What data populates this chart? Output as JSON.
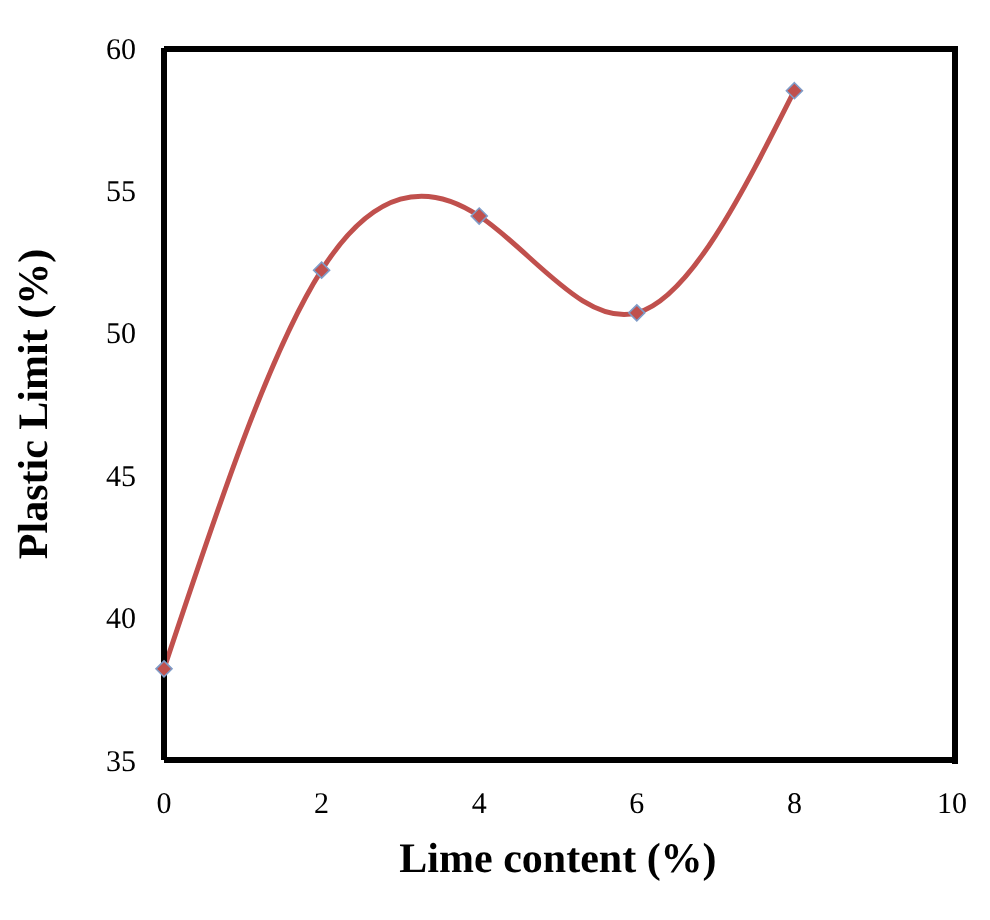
{
  "chart_data": {
    "type": "line",
    "xlabel": "Lime content (%)",
    "ylabel": "Plastic Limit (%)",
    "x": [
      0,
      2,
      4,
      6,
      8
    ],
    "series": [
      {
        "color": "#c0504d",
        "values": [
          38.2,
          52.2,
          54.1,
          50.7,
          58.5
        ]
      }
    ],
    "xlim": [
      0,
      10
    ],
    "xticks": [
      0,
      2,
      4,
      6,
      8,
      10
    ],
    "ylim": [
      35,
      60
    ],
    "yticks": [
      35,
      40,
      45,
      50,
      55,
      60
    ],
    "grid": false,
    "marker": "diamond",
    "line_style": "solid"
  }
}
